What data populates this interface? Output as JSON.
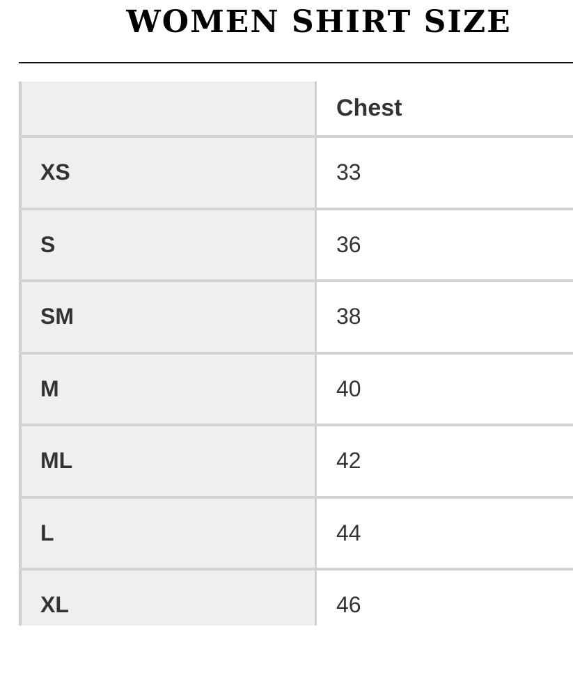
{
  "title": "WOMEN SHIRT SIZE",
  "table": {
    "headers": [
      "",
      "Chest"
    ],
    "rows": [
      {
        "size": "XS",
        "chest": "33"
      },
      {
        "size": "S",
        "chest": "36"
      },
      {
        "size": "SM",
        "chest": "38"
      },
      {
        "size": "M",
        "chest": "40"
      },
      {
        "size": "ML",
        "chest": "42"
      },
      {
        "size": "L",
        "chest": "44"
      },
      {
        "size": "XL",
        "chest": "46"
      }
    ]
  }
}
